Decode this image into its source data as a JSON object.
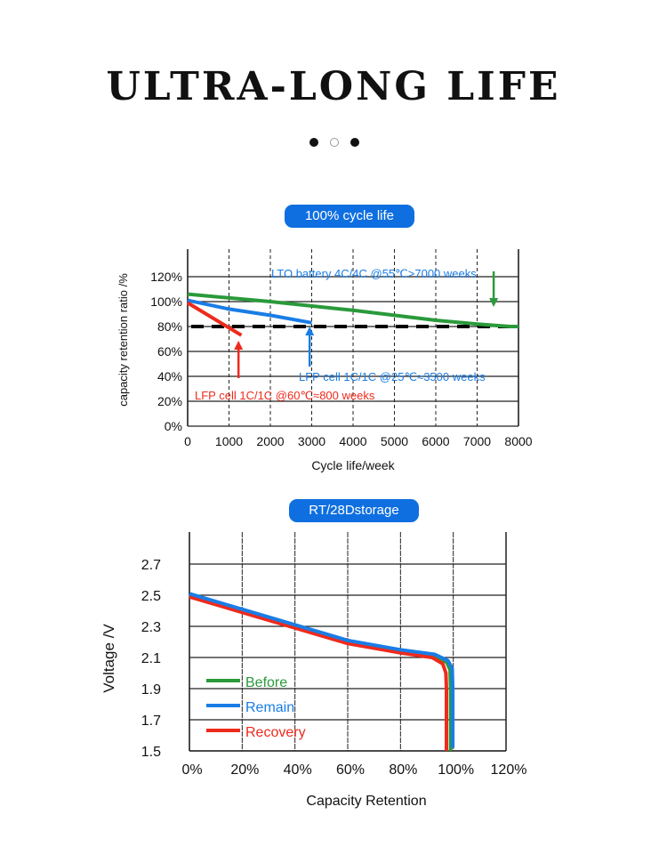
{
  "header": {
    "title": "ULTRA-LONG LIFE",
    "carousel_dots": [
      true,
      false,
      true
    ]
  },
  "colors": {
    "accent": "#0f6fe0",
    "green": "#2a9a3a",
    "blue": "#1a7de6",
    "red": "#ee2a1c"
  },
  "chart_data": [
    {
      "type": "line",
      "badge": "100% cycle life",
      "xlabel": "Cycle life/week",
      "ylabel": "capacity retention ratio /%",
      "xlim": [
        0,
        8000
      ],
      "ylim": [
        0,
        120
      ],
      "xticks": [
        "0",
        "1000",
        "2000",
        "3000",
        "4000",
        "5000",
        "6000",
        "7000",
        "8000"
      ],
      "yticks": [
        "0%",
        "20%",
        "40%",
        "60%",
        "80%",
        "100%",
        "120%"
      ],
      "threshold": 80,
      "series": [
        {
          "name": "LTO battery",
          "color": "#2a9a3a",
          "x": [
            0,
            2000,
            4000,
            5000,
            6000,
            7000,
            7800,
            8000
          ],
          "y": [
            106,
            100,
            93,
            89,
            85,
            82,
            80,
            80
          ]
        },
        {
          "name": "LFP cell 25C",
          "color": "#1a7de6",
          "x": [
            0,
            1000,
            2000,
            3000
          ],
          "y": [
            101,
            94,
            89,
            83
          ]
        },
        {
          "name": "LFP cell 60C",
          "color": "#ee2a1c",
          "x": [
            0,
            1300
          ],
          "y": [
            99,
            73
          ]
        }
      ],
      "annotations": [
        {
          "text": "LTO battery 4C/4C @55℃>7000 weeks",
          "color": "#1a7de6"
        },
        {
          "text": "LFP cell 1C/1C @25℃≈3500 weeks",
          "color": "#1a7de6"
        },
        {
          "text": "LFP cell 1C/1C @60℃≈800 weeks",
          "color": "#ee2a1c"
        }
      ]
    },
    {
      "type": "line",
      "badge": "RT/28Dstorage",
      "xlabel": "Capacity Retention",
      "ylabel": "Voltage /V",
      "xlim": [
        0,
        120
      ],
      "ylim": [
        1.5,
        2.7
      ],
      "xticks": [
        "0%",
        "20%",
        "40%",
        "60%",
        "80%",
        "100%",
        "120%"
      ],
      "yticks": [
        "1.5",
        "1.7",
        "1.9",
        "2.1",
        "2.3",
        "2.5",
        "2.7"
      ],
      "series": [
        {
          "name": "Before",
          "color": "#2a9a3a",
          "x": [
            0,
            20,
            40,
            60,
            80,
            93,
            97.5,
            98.8,
            99,
            99
          ],
          "y": [
            2.5,
            2.4,
            2.3,
            2.2,
            2.14,
            2.11,
            2.07,
            2.02,
            1.9,
            1.5
          ]
        },
        {
          "name": "Remain",
          "color": "#1a7de6",
          "x": [
            0,
            20,
            40,
            60,
            80,
            93,
            98,
            99.6,
            99.8,
            99.8
          ],
          "y": [
            2.51,
            2.41,
            2.31,
            2.21,
            2.15,
            2.12,
            2.08,
            2.03,
            1.9,
            1.52
          ]
        },
        {
          "name": "Recovery",
          "color": "#ee2a1c",
          "x": [
            0,
            20,
            40,
            60,
            80,
            92,
            96,
            97.2,
            97.4,
            97.4
          ],
          "y": [
            2.49,
            2.39,
            2.29,
            2.19,
            2.13,
            2.1,
            2.06,
            2.0,
            1.9,
            1.5
          ]
        }
      ]
    }
  ]
}
